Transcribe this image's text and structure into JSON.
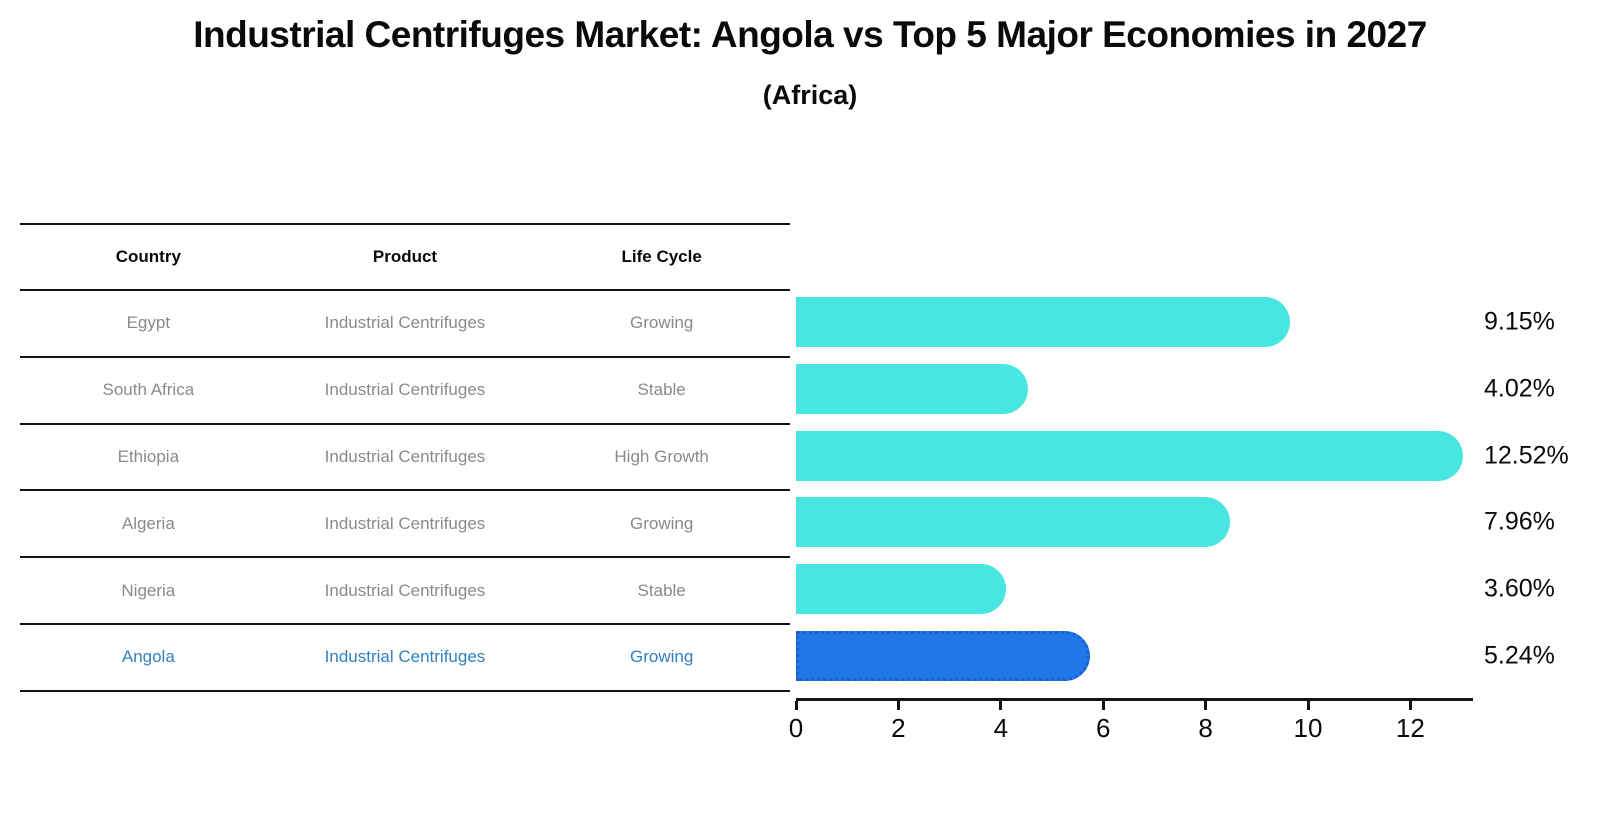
{
  "title": "Industrial Centrifuges Market: Angola vs Top 5 Major Economies in 2027",
  "subtitle": "(Africa)",
  "table": {
    "headers": [
      "Country",
      "Product",
      "Life Cycle"
    ],
    "rows": [
      {
        "country": "Egypt",
        "product": "Industrial Centrifuges",
        "life_cycle": "Growing",
        "highlighted": false
      },
      {
        "country": "South Africa",
        "product": "Industrial Centrifuges",
        "life_cycle": "Stable",
        "highlighted": false
      },
      {
        "country": "Ethiopia",
        "product": "Industrial Centrifuges",
        "life_cycle": "High Growth",
        "highlighted": false
      },
      {
        "country": "Algeria",
        "product": "Industrial Centrifuges",
        "life_cycle": "Growing",
        "highlighted": false
      },
      {
        "country": "Nigeria",
        "product": "Industrial Centrifuges",
        "life_cycle": "Stable",
        "highlighted": false
      },
      {
        "country": "Angola",
        "product": "Industrial Centrifuges",
        "life_cycle": "Growing",
        "highlighted": true
      }
    ]
  },
  "chart_data": {
    "type": "bar",
    "orientation": "horizontal",
    "title": "Industrial Centrifuges Market: Angola vs Top 5 Major Economies in 2027 (Africa)",
    "categories": [
      "Egypt",
      "South Africa",
      "Ethiopia",
      "Algeria",
      "Nigeria",
      "Angola"
    ],
    "values": [
      9.15,
      4.02,
      12.52,
      7.96,
      3.6,
      5.24
    ],
    "value_labels": [
      "9.15%",
      "4.02%",
      "12.52%",
      "7.96%",
      "3.60%",
      "5.24%"
    ],
    "xticks": [
      0,
      2,
      4,
      6,
      8,
      10,
      12
    ],
    "xlim": [
      0,
      13.2
    ],
    "grid": false,
    "legend": false,
    "highlight_index": 5,
    "colors": {
      "bar": "#47e6e0",
      "highlight_bar": "#2277e6",
      "highlight_border": "#175fd2",
      "highlight_text": "#3380c0",
      "row_text": "#8a8a8a",
      "axis": "#141414"
    }
  }
}
